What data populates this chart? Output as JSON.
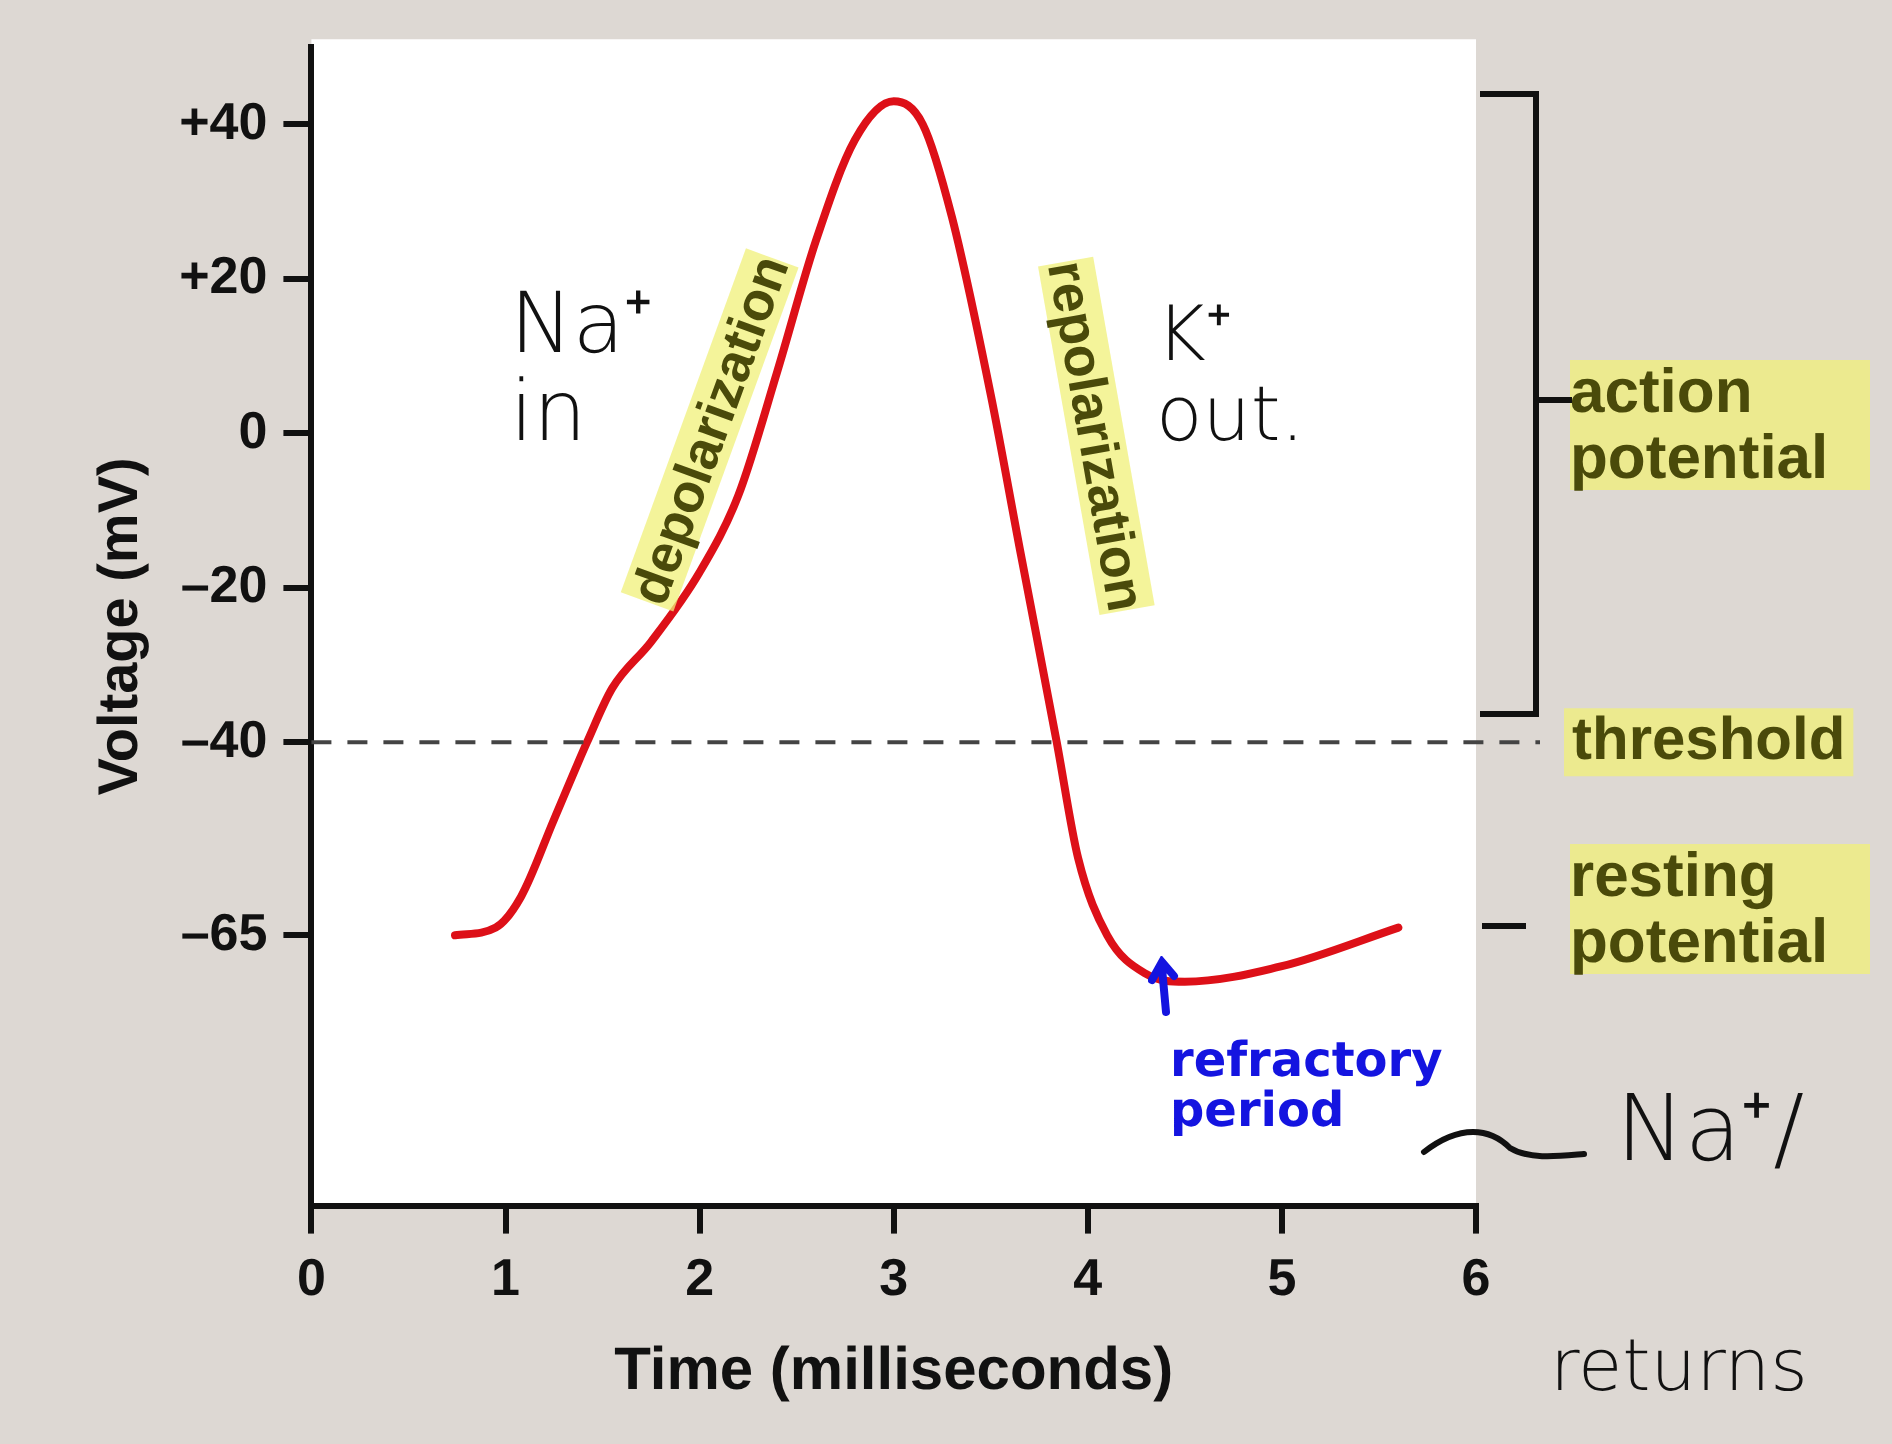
{
  "chart_data": {
    "type": "line",
    "xlabel": "Time (milliseconds)",
    "ylabel": "Voltage (mV)",
    "series": [
      {
        "color": "#dd1018",
        "x": [
          0.74,
          0.95,
          1.08,
          1.25,
          1.42,
          1.55,
          1.75,
          2.0,
          2.2,
          2.4,
          2.6,
          2.8,
          3.0,
          3.15,
          3.3,
          3.5,
          3.65,
          3.84,
          3.95,
          4.1,
          4.3,
          4.5,
          5.0,
          5.6
        ],
        "values": [
          -65,
          -64,
          -60,
          -50,
          -40,
          -33,
          -27,
          -18,
          -8,
          8,
          25,
          38,
          43,
          40,
          28,
          5,
          -15,
          -40,
          -55,
          -65,
          -70,
          -71,
          -69,
          -64
        ]
      }
    ],
    "xlim": [
      0,
      6
    ],
    "xticks": [
      0,
      1,
      2,
      3,
      4,
      5,
      6
    ],
    "ylim": [
      -100,
      50
    ],
    "yticks": [
      {
        "value": 40,
        "label": "+40"
      },
      {
        "value": 20,
        "label": "+20"
      },
      0,
      {
        "value": -20,
        "label": "–20"
      },
      {
        "value": -40,
        "label": "–40"
      },
      {
        "value": -65,
        "label": "–65"
      }
    ],
    "ref_lines": [
      {
        "axis": "y",
        "value": -40,
        "label": "threshold",
        "color": "#444444",
        "line_style": "dashed"
      }
    ],
    "annotations": [
      "Na⁺ in",
      "depolarization",
      "repolarization",
      "K⁺ out.",
      "action potential",
      "resting potential",
      "refractory period",
      "Na⁺/",
      "returns"
    ],
    "grid": false,
    "legend": false,
    "marker": "none"
  }
}
